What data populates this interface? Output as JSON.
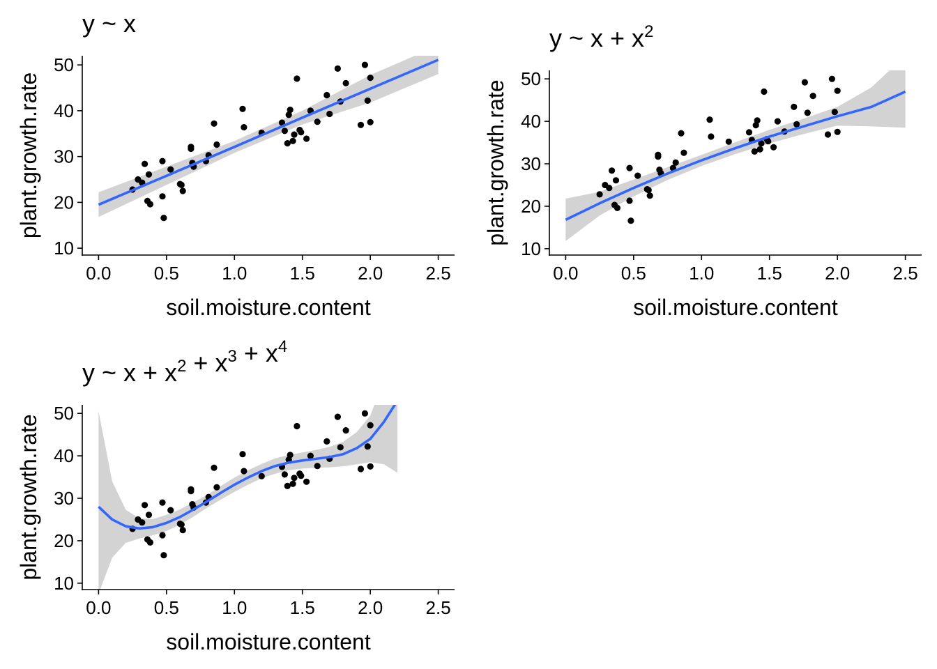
{
  "colors": {
    "fit_line": "#3366FF",
    "ribbon": "#D3D3D3",
    "points": "#000000",
    "axis": "#000000",
    "background": "#FFFFFF"
  },
  "chart_data": [
    {
      "type": "scatter",
      "title": "y ~ x",
      "title_terms": [
        {
          "base": "y ~ x",
          "sup": ""
        }
      ],
      "xlabel": "soil.moisture.content",
      "ylabel": "plant.growth.rate",
      "xlim": [
        -0.12,
        2.62
      ],
      "ylim": [
        8.5,
        52
      ],
      "xticks": [
        "0.0",
        "0.5",
        "1.0",
        "1.5",
        "2.0",
        "2.5"
      ],
      "yticks": [
        "10",
        "20",
        "30",
        "40",
        "50"
      ],
      "grid": false,
      "fit": {
        "model": "linear",
        "x": [
          0,
          0.5,
          1,
          1.5,
          2,
          2.5
        ],
        "y": [
          19.5,
          25.8,
          32.1,
          38.5,
          44.8,
          51.1
        ],
        "lower": [
          16.8,
          23.8,
          30.8,
          37.0,
          41.8,
          48.0
        ],
        "upper": [
          22.2,
          27.8,
          33.4,
          40.0,
          47.8,
          54.2
        ]
      },
      "points": {
        "x": [
          0.25,
          0.29,
          0.32,
          0.34,
          0.36,
          0.37,
          0.38,
          0.47,
          0.47,
          0.48,
          0.53,
          0.6,
          0.61,
          0.62,
          0.68,
          0.68,
          0.69,
          0.7,
          0.79,
          0.81,
          0.85,
          0.87,
          1.06,
          1.07,
          1.2,
          1.35,
          1.37,
          1.39,
          1.4,
          1.41,
          1.43,
          1.44,
          1.46,
          1.48,
          1.49,
          1.53,
          1.56,
          1.61,
          1.68,
          1.7,
          1.76,
          1.78,
          1.82,
          1.93,
          1.96,
          1.98,
          2.0,
          2.0
        ],
        "y": [
          22.8,
          25.0,
          24.3,
          28.4,
          20.3,
          26.1,
          19.6,
          29.0,
          21.3,
          16.6,
          27.2,
          24.0,
          23.8,
          22.5,
          31.7,
          32.1,
          28.6,
          27.8,
          29.0,
          30.3,
          37.2,
          32.6,
          40.4,
          36.4,
          35.2,
          37.4,
          35.6,
          32.9,
          39.1,
          40.2,
          33.4,
          34.8,
          47.0,
          35.8,
          35.3,
          33.9,
          40.0,
          37.6,
          43.4,
          39.3,
          49.2,
          42.0,
          46.0,
          36.9,
          50.0,
          42.2,
          47.2,
          37.5
        ]
      }
    },
    {
      "type": "scatter",
      "title": "y ~ x + x2",
      "title_terms": [
        {
          "base": "y ~ x + x",
          "sup": "2"
        }
      ],
      "xlabel": "soil.moisture.content",
      "ylabel": "plant.growth.rate",
      "xlim": [
        -0.12,
        2.62
      ],
      "ylim": [
        8.5,
        52
      ],
      "xticks": [
        "0.0",
        "0.5",
        "1.0",
        "1.5",
        "2.0",
        "2.5"
      ],
      "yticks": [
        "10",
        "20",
        "30",
        "40",
        "50"
      ],
      "grid": false,
      "fit": {
        "model": "quadratic",
        "x": [
          0,
          0.25,
          0.5,
          0.75,
          1,
          1.25,
          1.5,
          1.75,
          2,
          2.25,
          2.5
        ],
        "y": [
          16.8,
          20.7,
          24.3,
          27.7,
          30.8,
          33.7,
          36.4,
          38.8,
          41.2,
          43.4,
          47.0
        ],
        "lower": [
          11.8,
          17.8,
          22.3,
          26.2,
          29.5,
          32.3,
          34.8,
          37.0,
          39.0,
          38.8,
          38.5
        ],
        "upper": [
          21.8,
          23.4,
          26.3,
          29.2,
          32.1,
          35.1,
          38.0,
          40.6,
          43.4,
          48.0,
          55.5
        ]
      },
      "points": {
        "x": [
          0.25,
          0.29,
          0.32,
          0.34,
          0.36,
          0.37,
          0.38,
          0.47,
          0.47,
          0.48,
          0.53,
          0.6,
          0.61,
          0.62,
          0.68,
          0.68,
          0.69,
          0.7,
          0.79,
          0.81,
          0.85,
          0.87,
          1.06,
          1.07,
          1.2,
          1.35,
          1.37,
          1.39,
          1.4,
          1.41,
          1.43,
          1.44,
          1.46,
          1.48,
          1.49,
          1.53,
          1.56,
          1.61,
          1.68,
          1.7,
          1.76,
          1.78,
          1.82,
          1.93,
          1.96,
          1.98,
          2.0,
          2.0
        ],
        "y": [
          22.8,
          25.0,
          24.3,
          28.4,
          20.3,
          26.1,
          19.6,
          29.0,
          21.3,
          16.6,
          27.2,
          24.0,
          23.8,
          22.5,
          31.7,
          32.1,
          28.6,
          27.8,
          29.0,
          30.3,
          37.2,
          32.6,
          40.4,
          36.4,
          35.2,
          37.4,
          35.6,
          32.9,
          39.1,
          40.2,
          33.4,
          34.8,
          47.0,
          35.8,
          35.3,
          33.9,
          40.0,
          37.6,
          43.4,
          39.3,
          49.2,
          42.0,
          46.0,
          36.9,
          50.0,
          42.2,
          47.2,
          37.5
        ]
      }
    },
    {
      "type": "scatter",
      "title": "y ~ x + x2 + x3 + x4",
      "title_terms": [
        {
          "base": "y ~ x + x",
          "sup": "2"
        },
        {
          "base": " + x",
          "sup": "3"
        },
        {
          "base": " + x",
          "sup": "4"
        }
      ],
      "xlabel": "soil.moisture.content",
      "ylabel": "plant.growth.rate",
      "xlim": [
        -0.12,
        2.62
      ],
      "ylim": [
        8.5,
        52
      ],
      "xticks": [
        "0.0",
        "0.5",
        "1.0",
        "1.5",
        "2.0",
        "2.5"
      ],
      "yticks": [
        "10",
        "20",
        "30",
        "40",
        "50"
      ],
      "grid": false,
      "fit": {
        "model": "quartic",
        "x": [
          0,
          0.1,
          0.2,
          0.3,
          0.4,
          0.5,
          0.6,
          0.7,
          0.8,
          0.9,
          1.0,
          1.1,
          1.2,
          1.3,
          1.4,
          1.5,
          1.6,
          1.7,
          1.8,
          1.9,
          2.0,
          2.1,
          2.2
        ],
        "y": [
          28.0,
          25.0,
          23.4,
          22.9,
          23.2,
          24.2,
          25.6,
          27.4,
          29.3,
          31.3,
          33.2,
          34.9,
          36.4,
          37.6,
          38.4,
          38.9,
          39.3,
          39.7,
          40.4,
          41.8,
          44.0,
          48.0,
          53.0
        ],
        "lower": [
          7.5,
          16.0,
          19.5,
          20.5,
          21.3,
          22.3,
          23.8,
          25.7,
          27.8,
          29.7,
          31.5,
          33.2,
          34.7,
          35.8,
          36.6,
          37.0,
          37.2,
          37.3,
          37.5,
          38.0,
          38.5,
          38.0,
          36.0
        ],
        "upper": [
          50.5,
          34.0,
          27.3,
          25.3,
          25.1,
          26.1,
          27.4,
          29.1,
          30.8,
          32.9,
          34.9,
          36.6,
          38.1,
          39.4,
          40.2,
          40.8,
          41.4,
          42.1,
          43.3,
          45.6,
          49.5,
          58.0,
          70.0
        ]
      },
      "points": {
        "x": [
          0.25,
          0.29,
          0.32,
          0.34,
          0.36,
          0.37,
          0.38,
          0.47,
          0.47,
          0.48,
          0.53,
          0.6,
          0.61,
          0.62,
          0.68,
          0.68,
          0.69,
          0.7,
          0.79,
          0.81,
          0.85,
          0.87,
          1.06,
          1.07,
          1.2,
          1.35,
          1.37,
          1.39,
          1.4,
          1.41,
          1.43,
          1.44,
          1.46,
          1.48,
          1.49,
          1.53,
          1.56,
          1.61,
          1.68,
          1.7,
          1.76,
          1.78,
          1.82,
          1.93,
          1.96,
          1.98,
          2.0,
          2.0
        ],
        "y": [
          22.8,
          25.0,
          24.3,
          28.4,
          20.3,
          26.1,
          19.6,
          29.0,
          21.3,
          16.6,
          27.2,
          24.0,
          23.8,
          22.5,
          31.7,
          32.1,
          28.6,
          27.8,
          29.0,
          30.3,
          37.2,
          32.6,
          40.4,
          36.4,
          35.2,
          37.4,
          35.6,
          32.9,
          39.1,
          40.2,
          33.4,
          34.8,
          47.0,
          35.8,
          35.3,
          33.9,
          40.0,
          37.6,
          43.4,
          39.3,
          49.2,
          42.0,
          46.0,
          36.9,
          50.0,
          42.2,
          47.2,
          37.5
        ]
      }
    }
  ]
}
